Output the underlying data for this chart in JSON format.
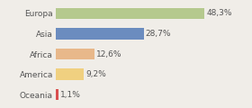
{
  "categories": [
    "Europa",
    "Asia",
    "Africa",
    "America",
    "Oceania"
  ],
  "values": [
    48.3,
    28.7,
    12.6,
    9.2,
    1.1
  ],
  "labels": [
    "48,3%",
    "28,7%",
    "12,6%",
    "9,2%",
    "1,1%"
  ],
  "bar_colors": [
    "#b5c98e",
    "#6b8cbf",
    "#e8b88a",
    "#f0d080",
    "#d94f4f"
  ],
  "background_color": "#f0ede8",
  "xlim": [
    0,
    62
  ],
  "bar_height": 0.55,
  "label_fontsize": 6.5,
  "tick_fontsize": 6.5
}
